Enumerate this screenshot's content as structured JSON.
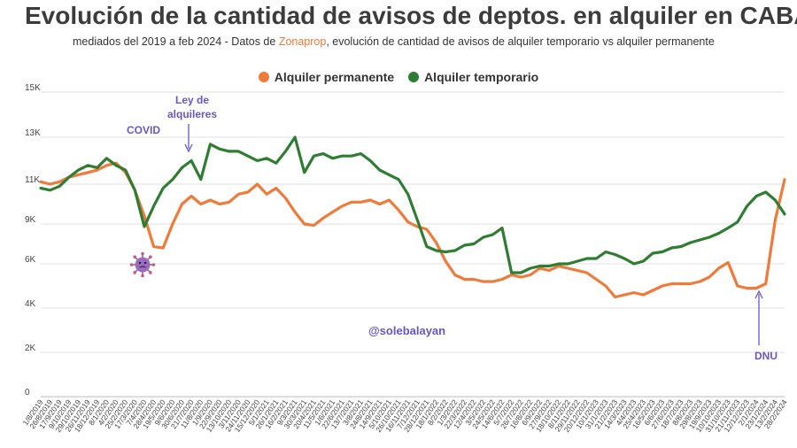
{
  "title": "Evolución de la cantidad de avisos de deptos. en alquiler en CABA",
  "subtitle": {
    "prefix": "mediados del 2019 a feb 2024 - Datos de ",
    "brand": "Zonaprop",
    "suffix": ", evolución de cantidad de avisos de  alquiler temporario vs alquiler permanente"
  },
  "colors": {
    "permanente": "#f07a3a",
    "temporario": "#2e7d32",
    "annotation": "#6a55c8",
    "grid": "#e2e2e2"
  },
  "annotations": {
    "covid": "COVID",
    "covid_icon": "virus-emoji-icon",
    "ley_line1": "Ley de",
    "ley_line2": "alquileres",
    "dnu": "DNU",
    "handle": "@solebalayan"
  },
  "chart_data": {
    "type": "line",
    "title": "Evolución de la cantidad de avisos de deptos. en alquiler en CABA",
    "xlabel": "",
    "ylabel": "",
    "ylim": [
      0,
      15000
    ],
    "yticks": [
      0,
      2000,
      4000,
      6000,
      9000,
      11000,
      13000,
      15000
    ],
    "ytick_labels": [
      "0",
      "2K",
      "4K",
      "6K",
      "9K",
      "11K",
      "13K",
      "15K"
    ],
    "grid": true,
    "legend_position": "top-center",
    "x_labels": [
      "1/8/2019",
      "26/8/2019",
      "17/9/2019",
      "9/10/2019",
      "29/10/2019",
      "26/11/2019",
      "18/12/2019",
      "8/1/2020",
      "4/2/2020",
      "25/2/2020",
      "17/3/2020",
      "7/4/2020",
      "28/4/2020",
      "19/5/2020",
      "9/6/2020",
      "30/6/2020",
      "21/7/2020",
      "11/8/2020",
      "1/9/2020",
      "22/9/2020",
      "13/10/2020",
      "3/11/2020",
      "24/11/2020",
      "15/12/2020",
      "5/1/2021",
      "26/1/2021",
      "16/2/2021",
      "9/3/2021",
      "30/3/2021",
      "20/4/2021",
      "11/5/2021",
      "1/6/2021",
      "22/6/2021",
      "13/7/2021",
      "3/8/2021",
      "24/8/2021",
      "14/9/2021",
      "5/10/2021",
      "26/10/2021",
      "16/11/2021",
      "7/12/2021",
      "28/12/2021",
      "18/1/2022",
      "8/2/2022",
      "1/3/2022",
      "22/3/2022",
      "12/4/2022",
      "3/5/2022",
      "24/5/2022",
      "14/6/2022",
      "5/7/2022",
      "26/7/2022",
      "16/8/2022",
      "6/9/2022",
      "27/9/2022",
      "18/10/2022",
      "8/11/2022",
      "29/11/2022",
      "20/12/2022",
      "10/1/2023",
      "31/1/2023",
      "21/2/2023",
      "14/3/2023",
      "4/4/2023",
      "25/4/2023",
      "16/5/2023",
      "6/6/2023",
      "27/6/2023",
      "18/7/2023",
      "8/8/2023",
      "29/8/2023",
      "19/9/2023",
      "10/10/2023",
      "31/10/2023",
      "21/11/2023",
      "12/12/2023",
      "2/1/2024",
      "23/1/2024",
      "13/2/2024",
      "28/2/2024"
    ],
    "series": [
      {
        "name": "Alquiler permanente",
        "color": "#f07a3a",
        "values": [
          11100,
          11000,
          11100,
          11300,
          11400,
          11500,
          11600,
          11800,
          11900,
          11500,
          10700,
          9400,
          7300,
          7200,
          9000,
          10000,
          10400,
          10000,
          10200,
          10000,
          10100,
          10500,
          10600,
          11000,
          10500,
          10800,
          10300,
          9600,
          9000,
          8900,
          9300,
          9600,
          9900,
          10100,
          10100,
          10200,
          10000,
          10200,
          9700,
          9100,
          8800,
          8600,
          7600,
          6200,
          5500,
          5300,
          5300,
          5200,
          5200,
          5300,
          5500,
          5400,
          5500,
          5800,
          5700,
          5900,
          5800,
          5700,
          5600,
          5300,
          5000,
          4500,
          4600,
          4700,
          4600,
          4800,
          5000,
          5100,
          5100,
          5100,
          5200,
          5400,
          5800,
          6100,
          5000,
          4900,
          4900,
          5100,
          9200,
          11200
        ]
      },
      {
        "name": "Alquiler temporario",
        "color": "#2e7d32",
        "values": [
          10800,
          10700,
          10900,
          11300,
          11600,
          11800,
          11700,
          12100,
          11800,
          11600,
          10700,
          8800,
          9900,
          10800,
          11200,
          11700,
          12000,
          11200,
          12700,
          12500,
          12400,
          12400,
          12200,
          12000,
          12100,
          11900,
          12400,
          13000,
          11500,
          12200,
          12300,
          12100,
          12200,
          12200,
          12300,
          12000,
          11600,
          11400,
          11200,
          10500,
          9200,
          7300,
          7000,
          6900,
          7000,
          7400,
          7500,
          8000,
          8200,
          8700,
          5600,
          5600,
          5800,
          5900,
          5900,
          6000,
          6000,
          6200,
          6400,
          6400,
          6900,
          6700,
          6400,
          6000,
          6200,
          6800,
          6900,
          7200,
          7300,
          7600,
          7800,
          8000,
          8300,
          8700,
          9100,
          9900,
          10400,
          10600,
          10200,
          9500
        ]
      }
    ]
  }
}
